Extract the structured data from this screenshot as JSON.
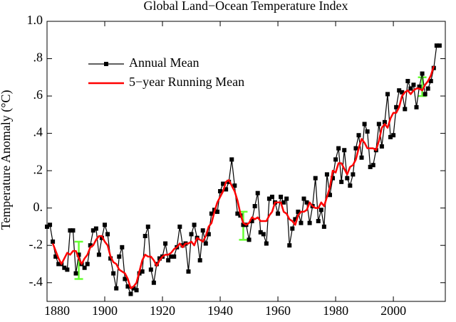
{
  "chart_data": {
    "type": "line",
    "title": "Global Land−Ocean Temperature Index",
    "y_label": "Temperature Anomaly (°C)",
    "x": [
      1880,
      1881,
      1882,
      1883,
      1884,
      1885,
      1886,
      1887,
      1888,
      1889,
      1890,
      1891,
      1892,
      1893,
      1894,
      1895,
      1896,
      1897,
      1898,
      1899,
      1900,
      1901,
      1902,
      1903,
      1904,
      1905,
      1906,
      1907,
      1908,
      1909,
      1910,
      1911,
      1912,
      1913,
      1914,
      1915,
      1916,
      1917,
      1918,
      1919,
      1920,
      1921,
      1922,
      1923,
      1924,
      1925,
      1926,
      1927,
      1928,
      1929,
      1930,
      1931,
      1932,
      1933,
      1934,
      1935,
      1936,
      1937,
      1938,
      1939,
      1940,
      1941,
      1942,
      1943,
      1944,
      1945,
      1946,
      1947,
      1948,
      1949,
      1950,
      1951,
      1952,
      1953,
      1954,
      1955,
      1956,
      1957,
      1958,
      1959,
      1960,
      1961,
      1962,
      1963,
      1964,
      1965,
      1966,
      1967,
      1968,
      1969,
      1970,
      1971,
      1972,
      1973,
      1974,
      1975,
      1976,
      1977,
      1978,
      1979,
      1980,
      1981,
      1982,
      1983,
      1984,
      1985,
      1986,
      1987,
      1988,
      1989,
      1990,
      1991,
      1992,
      1993,
      1994,
      1995,
      1996,
      1997,
      1998,
      1999,
      2000,
      2001,
      2002,
      2003,
      2004,
      2005,
      2006,
      2007,
      2008,
      2009,
      2010,
      2011,
      2012,
      2013,
      2014,
      2015,
      2016
    ],
    "series": [
      {
        "name": "Annual Mean",
        "color": "#000000",
        "marker": "square",
        "values": [
          -0.1,
          -0.09,
          -0.18,
          -0.26,
          -0.3,
          -0.3,
          -0.32,
          -0.33,
          -0.12,
          -0.12,
          -0.35,
          -0.25,
          -0.3,
          -0.32,
          -0.3,
          -0.2,
          -0.12,
          -0.11,
          -0.25,
          -0.16,
          -0.09,
          -0.14,
          -0.27,
          -0.35,
          -0.43,
          -0.26,
          -0.21,
          -0.38,
          -0.42,
          -0.46,
          -0.43,
          -0.44,
          -0.35,
          -0.34,
          -0.15,
          -0.1,
          -0.33,
          -0.4,
          -0.3,
          -0.27,
          -0.26,
          -0.19,
          -0.28,
          -0.26,
          -0.26,
          -0.21,
          -0.1,
          -0.2,
          -0.19,
          -0.34,
          -0.14,
          -0.09,
          -0.16,
          -0.28,
          -0.12,
          -0.19,
          -0.14,
          -0.03,
          -0.01,
          -0.02,
          0.09,
          0.13,
          0.1,
          0.14,
          0.26,
          0.12,
          -0.03,
          -0.04,
          -0.09,
          -0.09,
          -0.17,
          -0.07,
          0.01,
          0.08,
          -0.13,
          -0.14,
          -0.19,
          0.05,
          0.06,
          0.03,
          -0.03,
          0.06,
          0.03,
          0.05,
          -0.2,
          -0.11,
          -0.06,
          -0.02,
          -0.08,
          0.05,
          0.03,
          -0.08,
          0.01,
          0.16,
          -0.07,
          -0.01,
          -0.1,
          0.18,
          0.07,
          0.16,
          0.26,
          0.32,
          0.14,
          0.31,
          0.16,
          0.12,
          0.18,
          0.32,
          0.39,
          0.27,
          0.45,
          0.41,
          0.22,
          0.23,
          0.31,
          0.45,
          0.33,
          0.46,
          0.61,
          0.38,
          0.39,
          0.54,
          0.63,
          0.62,
          0.53,
          0.68,
          0.64,
          0.66,
          0.54,
          0.65,
          0.72,
          0.61,
          0.64,
          0.68,
          0.75,
          0.87,
          0.87
        ]
      },
      {
        "name": "5−year Running Mean",
        "color": "#ff0000",
        "marker": "none",
        "values": [
          null,
          null,
          -0.19,
          -0.23,
          -0.27,
          -0.3,
          -0.27,
          -0.24,
          -0.25,
          -0.23,
          -0.23,
          -0.27,
          -0.3,
          -0.27,
          -0.25,
          -0.21,
          -0.2,
          -0.17,
          -0.15,
          -0.15,
          -0.18,
          -0.2,
          -0.26,
          -0.29,
          -0.3,
          -0.33,
          -0.34,
          -0.35,
          -0.38,
          -0.43,
          -0.42,
          -0.4,
          -0.34,
          -0.28,
          -0.25,
          -0.26,
          -0.26,
          -0.28,
          -0.31,
          -0.28,
          -0.26,
          -0.25,
          -0.25,
          -0.24,
          -0.22,
          -0.21,
          -0.19,
          -0.21,
          -0.19,
          -0.19,
          -0.18,
          -0.2,
          -0.16,
          -0.17,
          -0.18,
          -0.15,
          -0.1,
          -0.08,
          -0.02,
          0.03,
          0.06,
          0.09,
          0.14,
          0.15,
          0.12,
          0.09,
          0.04,
          -0.03,
          -0.08,
          -0.09,
          -0.08,
          -0.05,
          -0.06,
          -0.05,
          -0.07,
          -0.07,
          -0.07,
          -0.04,
          -0.02,
          0.03,
          0.03,
          0.03,
          -0.02,
          -0.03,
          -0.06,
          -0.07,
          -0.09,
          -0.04,
          -0.02,
          -0.02,
          -0.01,
          0.03,
          0.01,
          0.0,
          0.0,
          0.03,
          0.01,
          0.06,
          0.11,
          0.2,
          0.19,
          0.24,
          0.24,
          0.21,
          0.18,
          0.22,
          0.23,
          0.26,
          0.32,
          0.37,
          0.35,
          0.32,
          0.32,
          0.32,
          0.31,
          0.36,
          0.43,
          0.45,
          0.43,
          0.48,
          0.51,
          0.51,
          0.54,
          0.6,
          0.62,
          0.63,
          0.61,
          0.63,
          0.64,
          0.64,
          0.63,
          0.66,
          0.68,
          0.71,
          0.76,
          null,
          null
        ]
      }
    ],
    "error_bars": {
      "color": "#66ff33",
      "x": [
        1891,
        1948,
        2010
      ],
      "values": [
        -0.28,
        -0.095,
        0.65
      ],
      "errors": [
        0.1,
        0.075,
        0.05
      ]
    },
    "xlim": [
      1880,
      2018
    ],
    "ylim": [
      -0.5,
      1.0
    ],
    "xticks": [
      1880,
      1900,
      1920,
      1940,
      1960,
      1980,
      2000
    ],
    "yticks": [
      {
        "value": -0.4,
        "label": "-.4"
      },
      {
        "value": -0.2,
        "label": "-.2"
      },
      {
        "value": 0,
        "label": "0."
      },
      {
        "value": 0.2,
        "label": ".2"
      },
      {
        "value": 0.4,
        "label": ".4"
      },
      {
        "value": 0.6,
        "label": ".6"
      },
      {
        "value": 0.8,
        "label": ".8"
      },
      {
        "value": 1.0,
        "label": "1.0"
      }
    ],
    "legend": "upper left",
    "grid": false
  }
}
